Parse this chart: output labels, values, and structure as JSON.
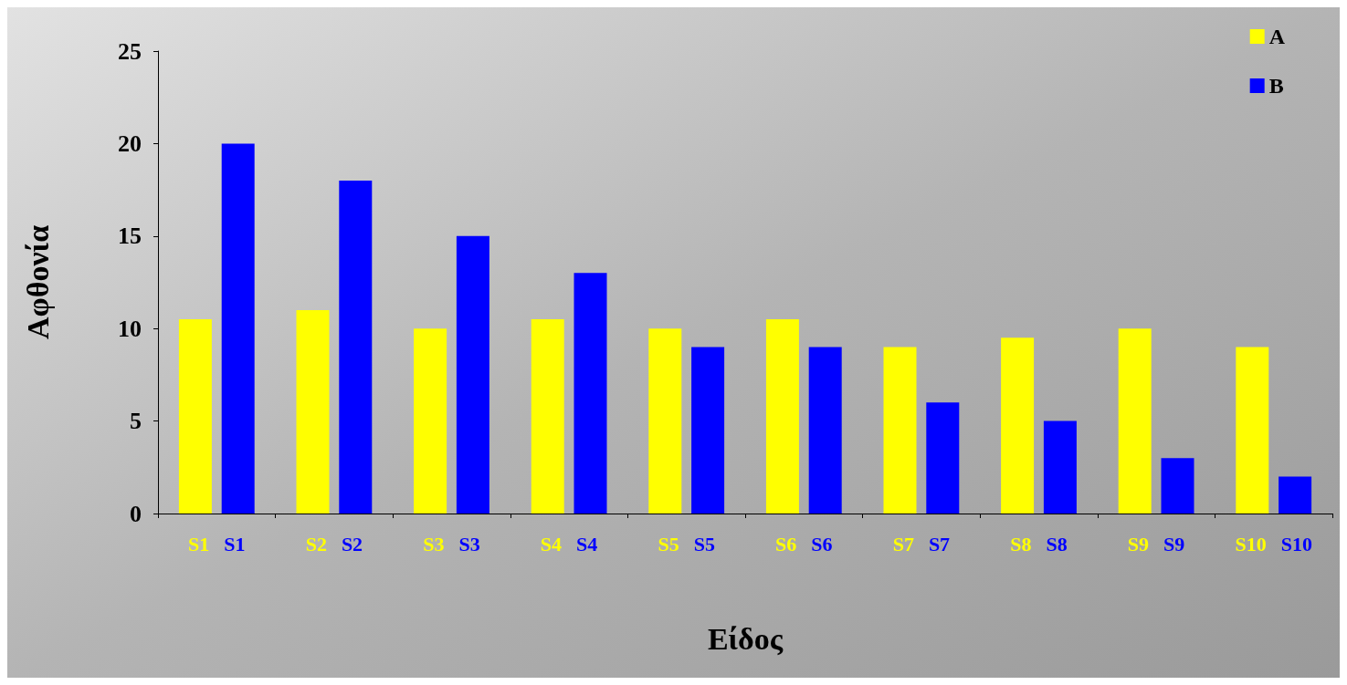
{
  "chart_data": {
    "type": "bar",
    "xlabel": "Είδος",
    "ylabel": "Αφθονία",
    "categories": [
      "S1",
      "S2",
      "S3",
      "S4",
      "S5",
      "S6",
      "S7",
      "S8",
      "S9",
      "S10"
    ],
    "series": [
      {
        "name": "A",
        "color": "#ffff00",
        "values": [
          10.5,
          11,
          10,
          10.5,
          10,
          10.5,
          9,
          9.5,
          10,
          9
        ]
      },
      {
        "name": "B",
        "color": "#0000ff",
        "values": [
          20,
          18,
          15,
          13,
          9,
          9,
          6,
          5,
          3,
          2
        ]
      }
    ],
    "ylim": [
      0,
      25
    ],
    "yticks": [
      0,
      5,
      10,
      15,
      20,
      25
    ],
    "grid": false,
    "legend": "top right"
  }
}
